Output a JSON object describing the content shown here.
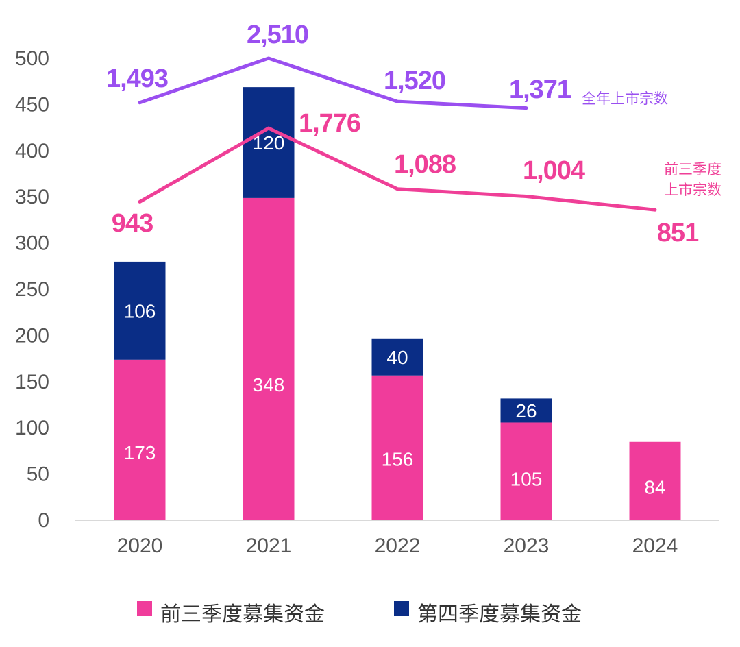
{
  "colors": {
    "pink": "#f03c9b",
    "navy": "#0a2d86",
    "purple": "#9a4ff0",
    "pink_line": "#ef3f97",
    "axis_text": "#555555",
    "baseline": "#d9d9d9"
  },
  "chart_data": {
    "type": "bar",
    "stacked": true,
    "categories": [
      "2020",
      "2021",
      "2022",
      "2023",
      "2024"
    ],
    "ylim": [
      0,
      500
    ],
    "yticks": [
      "0",
      "50",
      "100",
      "150",
      "200",
      "250",
      "300",
      "350",
      "400",
      "450",
      "500"
    ],
    "series": [
      {
        "name": "前三季度募集资金",
        "values": [
          173,
          348,
          156,
          105,
          84
        ],
        "labels": [
          "173",
          "348",
          "156",
          "105",
          "84"
        ]
      },
      {
        "name": "第四季度募集资金",
        "values": [
          106,
          120,
          40,
          26,
          null
        ],
        "labels": [
          "106",
          "120",
          "40",
          "26",
          ""
        ]
      }
    ],
    "lines": [
      {
        "name": "全年上市宗数",
        "values": [
          1493,
          2510,
          1520,
          1371
        ],
        "labels": [
          "1,493",
          "2,510",
          "1,520",
          "1,371"
        ],
        "tag": [
          "全年上市宗数"
        ]
      },
      {
        "name": "前三季度上市宗数",
        "values": [
          943,
          1776,
          1088,
          1004,
          851
        ],
        "labels": [
          "943",
          "1,776",
          "1,088",
          "1,004",
          "851"
        ],
        "tag": [
          "前三季度",
          "上市宗数"
        ]
      }
    ],
    "legend": [
      "前三季度募集资金",
      "第四季度募集资金"
    ],
    "legend_position": "bottom"
  }
}
